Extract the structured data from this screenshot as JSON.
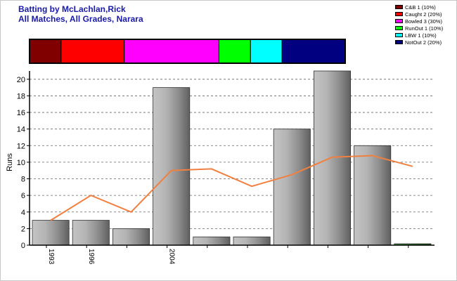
{
  "title": "Batting by McLachlan,Rick",
  "subtitle": "All Matches, All Grades, Narara",
  "legend": [
    {
      "label": "C&B 1 (10%)",
      "color": "#800000"
    },
    {
      "label": "Caught 2 (20%)",
      "color": "#ff0000"
    },
    {
      "label": "Bowled 3 (30%)",
      "color": "#ff00ff"
    },
    {
      "label": "RunOut 1 (10%)",
      "color": "#00ff00"
    },
    {
      "label": "LBW 1 (10%)",
      "color": "#00ffff"
    },
    {
      "label": "NotOut 2 (20%)",
      "color": "#000080"
    }
  ],
  "dismissal_bar": [
    {
      "name": "C&B",
      "count": 1,
      "color": "#800000"
    },
    {
      "name": "Caught",
      "count": 2,
      "color": "#ff0000"
    },
    {
      "name": "Bowled",
      "count": 3,
      "color": "#ff00ff"
    },
    {
      "name": "RunOut",
      "count": 1,
      "color": "#00ff00"
    },
    {
      "name": "LBW",
      "count": 1,
      "color": "#00ffff"
    },
    {
      "name": "NotOut",
      "count": 2,
      "color": "#000080"
    }
  ],
  "chart_data": {
    "type": "bar",
    "title": "Batting by McLachlan,Rick",
    "subtitle": "All Matches, All Grades, Narara",
    "ylabel": "Runs",
    "xlabel": "",
    "ylim": [
      0,
      21
    ],
    "yticks": [
      0,
      2,
      4,
      6,
      8,
      10,
      12,
      14,
      16,
      18,
      20
    ],
    "grid": true,
    "categories": [
      "1993",
      "1996",
      "",
      "2004",
      "",
      "",
      "",
      "",
      "",
      ""
    ],
    "values": [
      3,
      3,
      2,
      19,
      1,
      1,
      14,
      21,
      12,
      0
    ],
    "line": {
      "name": "",
      "color": "#f08040",
      "values": [
        3,
        6,
        4,
        9,
        9.2,
        7.1,
        8.5,
        10.6,
        10.8,
        9.5
      ]
    },
    "bar_colors": [
      "#b0b0b0",
      "#b0b0b0",
      "#b0b0b0",
      "#b0b0b0",
      "#b0b0b0",
      "#b0b0b0",
      "#b0b0b0",
      "#b0b0b0",
      "#b0b0b0",
      "#1f7a1f"
    ]
  }
}
